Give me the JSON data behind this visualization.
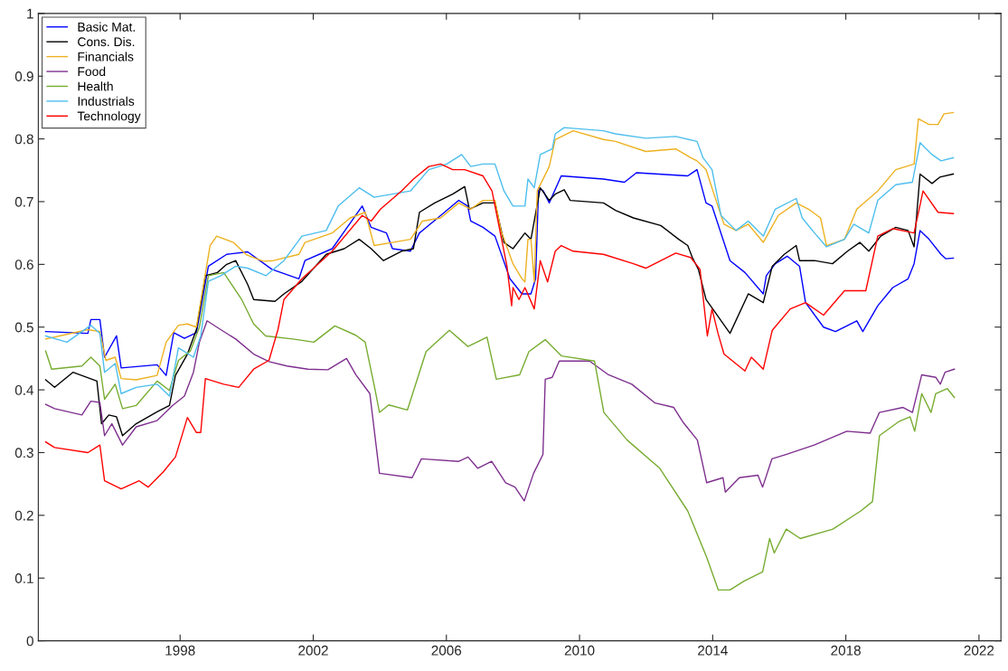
{
  "chart_data": {
    "type": "line",
    "xlim": [
      1993.74,
      2022.66
    ],
    "xticks": [
      1998,
      2002,
      2006,
      2010,
      2014,
      2018,
      2022
    ],
    "ylim": [
      0,
      1
    ],
    "yticks": [
      0,
      0.1,
      0.2,
      0.3,
      0.4,
      0.5,
      0.6,
      0.7,
      0.8,
      0.9,
      1
    ],
    "grid": false,
    "legend": "top left",
    "marker": "none",
    "line_style": "solid",
    "series": [
      {
        "name": "Basic Mat.",
        "color": "#0000ff",
        "x": [
          1993.96,
          1995.23,
          1995.32,
          1995.59,
          1995.73,
          1996.09,
          1996.23,
          1997.31,
          1997.58,
          1997.81,
          1998.13,
          1998.49,
          1998.85,
          1999.4,
          2000.03,
          2000.76,
          2001.57,
          2001.75,
          2002.57,
          2003.47,
          2003.74,
          2004.2,
          2004.38,
          2004.92,
          2005.19,
          2005.83,
          2006.37,
          2006.64,
          2006.73,
          2007.1,
          2007.46,
          2007.91,
          2008.27,
          2008.54,
          2008.68,
          2008.77,
          2008.91,
          2009.09,
          2009.45,
          2010.72,
          2011.35,
          2011.71,
          2013.25,
          2013.53,
          2013.8,
          2013.98,
          2014.52,
          2014.97,
          2015.52,
          2015.61,
          2015.88,
          2016.24,
          2016.61,
          2016.79,
          2017.33,
          2017.69,
          2018.33,
          2018.51,
          2018.96,
          2019.41,
          2019.87,
          2020.05,
          2020.23,
          2020.5,
          2020.86,
          2021.0,
          2021.23
        ],
        "values": [
          0.493,
          0.49,
          0.512,
          0.512,
          0.452,
          0.486,
          0.435,
          0.44,
          0.423,
          0.491,
          0.482,
          0.491,
          0.597,
          0.616,
          0.62,
          0.592,
          0.577,
          0.606,
          0.625,
          0.693,
          0.659,
          0.65,
          0.625,
          0.621,
          0.65,
          0.678,
          0.702,
          0.693,
          0.669,
          0.659,
          0.645,
          0.577,
          0.553,
          0.553,
          0.577,
          0.722,
          0.717,
          0.698,
          0.741,
          0.736,
          0.731,
          0.746,
          0.741,
          0.751,
          0.698,
          0.693,
          0.606,
          0.587,
          0.553,
          0.582,
          0.601,
          0.613,
          0.597,
          0.539,
          0.5,
          0.493,
          0.51,
          0.493,
          0.534,
          0.563,
          0.577,
          0.601,
          0.654,
          0.64,
          0.616,
          0.609,
          0.61
        ]
      },
      {
        "name": "Cons. Dis.",
        "color": "#000000",
        "x": [
          1993.96,
          1994.23,
          1994.78,
          1995.5,
          1995.64,
          1995.86,
          1996.09,
          1996.27,
          1996.68,
          1997.31,
          1997.68,
          1997.86,
          1998.22,
          1998.49,
          1998.76,
          1999.12,
          1999.4,
          1999.67,
          2000.03,
          2000.21,
          2000.85,
          2001.12,
          2001.66,
          2002.39,
          2002.93,
          2003.38,
          2003.74,
          2004.11,
          2004.65,
          2005.01,
          2005.19,
          2005.65,
          2006.19,
          2006.55,
          2006.69,
          2007.1,
          2007.46,
          2007.73,
          2008.0,
          2008.36,
          2008.54,
          2008.82,
          2009.09,
          2009.27,
          2009.54,
          2009.72,
          2010.72,
          2011.08,
          2011.62,
          2012.44,
          2012.98,
          2013.25,
          2013.39,
          2013.57,
          2013.8,
          2014.07,
          2014.52,
          2015.07,
          2015.52,
          2015.79,
          2016.15,
          2016.51,
          2016.61,
          2017.06,
          2017.6,
          2018.05,
          2018.42,
          2018.69,
          2019.05,
          2019.5,
          2019.87,
          2020.05,
          2020.23,
          2020.59,
          2020.82,
          2021.23
        ],
        "values": [
          0.416,
          0.404,
          0.428,
          0.414,
          0.346,
          0.36,
          0.357,
          0.327,
          0.346,
          0.365,
          0.375,
          0.423,
          0.457,
          0.496,
          0.582,
          0.587,
          0.6,
          0.606,
          0.568,
          0.544,
          0.541,
          0.553,
          0.573,
          0.616,
          0.625,
          0.64,
          0.625,
          0.606,
          0.621,
          0.625,
          0.683,
          0.698,
          0.712,
          0.724,
          0.688,
          0.698,
          0.698,
          0.635,
          0.625,
          0.65,
          0.64,
          0.722,
          0.702,
          0.712,
          0.719,
          0.702,
          0.698,
          0.686,
          0.674,
          0.662,
          0.64,
          0.63,
          0.611,
          0.592,
          0.544,
          0.524,
          0.49,
          0.553,
          0.539,
          0.597,
          0.616,
          0.63,
          0.606,
          0.606,
          0.601,
          0.621,
          0.635,
          0.621,
          0.645,
          0.659,
          0.654,
          0.628,
          0.744,
          0.729,
          0.739,
          0.744
        ]
      },
      {
        "name": "Financials",
        "color": "#edb120",
        "x": [
          1993.96,
          1995.23,
          1995.59,
          1995.77,
          1996.05,
          1996.23,
          1996.68,
          1997.31,
          1997.58,
          1997.95,
          1998.22,
          1998.49,
          1998.9,
          1999.1,
          1999.6,
          2000.0,
          2000.5,
          2000.8,
          2001.57,
          2001.75,
          2002.57,
          2003.11,
          2003.56,
          2003.83,
          2004.38,
          2004.92,
          2005.28,
          2005.83,
          2006.37,
          2006.73,
          2007.1,
          2007.46,
          2007.64,
          2008.0,
          2008.27,
          2008.36,
          2008.45,
          2008.54,
          2008.64,
          2008.73,
          2009.09,
          2009.27,
          2009.81,
          2010.72,
          2011.08,
          2011.99,
          2012.89,
          2013.34,
          2013.53,
          2013.8,
          2014.07,
          2014.34,
          2014.7,
          2015.07,
          2015.52,
          2015.97,
          2016.51,
          2016.88,
          2017.24,
          2017.42,
          2017.96,
          2018.33,
          2018.96,
          2019.5,
          2020.05,
          2020.18,
          2020.5,
          2020.77,
          2020.95,
          2021.23
        ],
        "values": [
          0.481,
          0.496,
          0.493,
          0.447,
          0.452,
          0.418,
          0.416,
          0.423,
          0.476,
          0.503,
          0.505,
          0.5,
          0.63,
          0.645,
          0.635,
          0.615,
          0.605,
          0.606,
          0.616,
          0.635,
          0.65,
          0.674,
          0.683,
          0.63,
          0.635,
          0.64,
          0.669,
          0.674,
          0.698,
          0.688,
          0.702,
          0.702,
          0.654,
          0.601,
          0.577,
          0.572,
          0.64,
          0.64,
          0.572,
          0.717,
          0.756,
          0.799,
          0.813,
          0.799,
          0.796,
          0.78,
          0.784,
          0.77,
          0.765,
          0.751,
          0.707,
          0.664,
          0.654,
          0.664,
          0.635,
          0.678,
          0.698,
          0.688,
          0.674,
          0.63,
          0.64,
          0.688,
          0.717,
          0.751,
          0.76,
          0.832,
          0.823,
          0.823,
          0.84,
          0.842
        ]
      },
      {
        "name": "Food",
        "color": "#7e2f8e",
        "x": [
          1993.96,
          1994.23,
          1995.05,
          1995.32,
          1995.59,
          1995.73,
          1995.95,
          1996.27,
          1996.68,
          1997.31,
          1997.77,
          1998.13,
          1998.4,
          1998.58,
          1998.81,
          1999.22,
          1999.67,
          2000.21,
          2000.67,
          2001.21,
          2001.84,
          2002.44,
          2003.0,
          2003.28,
          2003.7,
          2003.99,
          2004.97,
          2005.25,
          2006.37,
          2006.65,
          2006.94,
          2007.36,
          2007.78,
          2008.06,
          2008.34,
          2008.62,
          2008.9,
          2008.97,
          2009.18,
          2009.39,
          2010.3,
          2010.87,
          2011.57,
          2012.27,
          2012.83,
          2013.1,
          2013.54,
          2013.82,
          2014.31,
          2014.38,
          2014.8,
          2015.36,
          2015.5,
          2015.78,
          2016.2,
          2017.05,
          2018.03,
          2018.73,
          2019.01,
          2019.72,
          2020.0,
          2020.28,
          2020.7,
          2020.84,
          2020.98,
          2021.26
        ],
        "values": [
          0.377,
          0.37,
          0.36,
          0.382,
          0.38,
          0.327,
          0.346,
          0.312,
          0.341,
          0.351,
          0.375,
          0.39,
          0.428,
          0.476,
          0.51,
          0.496,
          0.481,
          0.457,
          0.445,
          0.438,
          0.433,
          0.432,
          0.45,
          0.424,
          0.394,
          0.267,
          0.26,
          0.29,
          0.286,
          0.293,
          0.275,
          0.286,
          0.252,
          0.245,
          0.223,
          0.267,
          0.297,
          0.417,
          0.42,
          0.446,
          0.446,
          0.424,
          0.409,
          0.379,
          0.372,
          0.349,
          0.32,
          0.252,
          0.26,
          0.237,
          0.26,
          0.264,
          0.245,
          0.29,
          0.297,
          0.312,
          0.334,
          0.331,
          0.364,
          0.372,
          0.364,
          0.424,
          0.42,
          0.409,
          0.428,
          0.433
        ]
      },
      {
        "name": "Health",
        "color": "#77ac30",
        "x": [
          1993.96,
          1994.14,
          1995.05,
          1995.32,
          1995.59,
          1995.73,
          1996.05,
          1996.27,
          1996.68,
          1997.31,
          1997.68,
          1997.95,
          1998.31,
          1998.58,
          1998.85,
          1999.31,
          1999.85,
          2000.21,
          2000.57,
          2001.39,
          2002.02,
          2002.65,
          2003.28,
          2003.56,
          2003.85,
          2003.99,
          2004.27,
          2004.83,
          2005.39,
          2006.09,
          2006.65,
          2007.22,
          2007.5,
          2008.2,
          2008.48,
          2008.97,
          2009.46,
          2010.45,
          2010.73,
          2011.43,
          2012.41,
          2013.25,
          2013.82,
          2014.17,
          2014.52,
          2014.94,
          2015.5,
          2015.71,
          2015.85,
          2016.21,
          2016.63,
          2017.61,
          2018.45,
          2018.8,
          2019.01,
          2019.58,
          2019.93,
          2020.07,
          2020.28,
          2020.56,
          2020.7,
          2021.05,
          2021.26
        ],
        "values": [
          0.462,
          0.433,
          0.438,
          0.452,
          0.438,
          0.385,
          0.409,
          0.37,
          0.375,
          0.414,
          0.399,
          0.447,
          0.462,
          0.5,
          0.582,
          0.587,
          0.544,
          0.505,
          0.486,
          0.481,
          0.476,
          0.502,
          0.487,
          0.476,
          0.402,
          0.364,
          0.376,
          0.368,
          0.461,
          0.495,
          0.469,
          0.484,
          0.417,
          0.424,
          0.461,
          0.48,
          0.454,
          0.446,
          0.364,
          0.32,
          0.275,
          0.207,
          0.133,
          0.081,
          0.081,
          0.095,
          0.11,
          0.163,
          0.14,
          0.178,
          0.163,
          0.178,
          0.207,
          0.222,
          0.327,
          0.349,
          0.357,
          0.334,
          0.394,
          0.364,
          0.394,
          0.402,
          0.388
        ]
      },
      {
        "name": "Industrials",
        "color": "#4dbeee",
        "x": [
          1993.96,
          1994.6,
          1995.32,
          1995.59,
          1995.73,
          1996.05,
          1996.23,
          1996.68,
          1997.31,
          1997.68,
          1997.95,
          1998.4,
          1998.62,
          1998.85,
          1999.22,
          1999.67,
          2000.03,
          2000.58,
          2001.12,
          2001.66,
          2002.39,
          2002.75,
          2003.38,
          2003.83,
          2004.38,
          2004.92,
          2005.47,
          2006.01,
          2006.46,
          2006.73,
          2007.1,
          2007.46,
          2007.73,
          2008.0,
          2008.36,
          2008.45,
          2008.64,
          2008.82,
          2009.18,
          2009.27,
          2009.54,
          2010.72,
          2011.08,
          2011.99,
          2012.89,
          2013.53,
          2013.71,
          2013.98,
          2014.25,
          2014.7,
          2015.07,
          2015.52,
          2015.88,
          2016.51,
          2016.69,
          2017.06,
          2017.42,
          2017.96,
          2018.24,
          2018.69,
          2018.96,
          2019.5,
          2020.0,
          2020.23,
          2020.59,
          2020.86,
          2021.23
        ],
        "values": [
          0.486,
          0.476,
          0.503,
          0.49,
          0.428,
          0.442,
          0.394,
          0.404,
          0.409,
          0.39,
          0.467,
          0.452,
          0.486,
          0.573,
          0.582,
          0.597,
          0.594,
          0.582,
          0.606,
          0.645,
          0.654,
          0.693,
          0.722,
          0.707,
          0.712,
          0.717,
          0.751,
          0.76,
          0.775,
          0.756,
          0.76,
          0.76,
          0.717,
          0.693,
          0.693,
          0.736,
          0.722,
          0.775,
          0.784,
          0.808,
          0.818,
          0.813,
          0.808,
          0.801,
          0.804,
          0.796,
          0.77,
          0.751,
          0.678,
          0.654,
          0.669,
          0.645,
          0.688,
          0.705,
          0.674,
          0.65,
          0.628,
          0.64,
          0.664,
          0.65,
          0.702,
          0.727,
          0.731,
          0.794,
          0.775,
          0.765,
          0.77
        ]
      },
      {
        "name": "Technology",
        "color": "#ff0000",
        "x": [
          1993.96,
          1994.23,
          1995.23,
          1995.59,
          1995.73,
          1996.23,
          1996.77,
          1997.04,
          1997.49,
          1997.86,
          1998.22,
          1998.49,
          1998.62,
          1998.76,
          1999.31,
          1999.76,
          2000.21,
          2000.67,
          2000.94,
          2001.12,
          2001.66,
          2002.57,
          2003.47,
          2003.74,
          2004.02,
          2004.65,
          2005.01,
          2005.47,
          2005.83,
          2006.19,
          2006.55,
          2007.1,
          2007.37,
          2007.64,
          2007.82,
          2007.96,
          2008.0,
          2008.18,
          2008.36,
          2008.64,
          2008.82,
          2009.04,
          2009.27,
          2009.45,
          2009.81,
          2010.72,
          2011.62,
          2011.99,
          2012.89,
          2013.34,
          2013.62,
          2013.84,
          2013.98,
          2014.16,
          2014.34,
          2014.97,
          2015.16,
          2015.52,
          2015.79,
          2016.33,
          2016.79,
          2017.33,
          2017.96,
          2018.6,
          2018.96,
          2019.41,
          2020.05,
          2020.32,
          2020.77,
          2021.23
        ],
        "values": [
          0.317,
          0.308,
          0.3,
          0.312,
          0.255,
          0.242,
          0.255,
          0.245,
          0.269,
          0.293,
          0.356,
          0.332,
          0.332,
          0.418,
          0.409,
          0.404,
          0.433,
          0.447,
          0.496,
          0.544,
          0.577,
          0.621,
          0.678,
          0.669,
          0.688,
          0.717,
          0.736,
          0.756,
          0.76,
          0.751,
          0.751,
          0.741,
          0.717,
          0.645,
          0.597,
          0.534,
          0.563,
          0.544,
          0.563,
          0.529,
          0.606,
          0.572,
          0.621,
          0.63,
          0.621,
          0.616,
          0.601,
          0.594,
          0.618,
          0.611,
          0.592,
          0.486,
          0.529,
          0.49,
          0.457,
          0.43,
          0.452,
          0.433,
          0.495,
          0.529,
          0.539,
          0.519,
          0.558,
          0.558,
          0.645,
          0.657,
          0.65,
          0.717,
          0.683,
          0.681
        ]
      }
    ]
  }
}
